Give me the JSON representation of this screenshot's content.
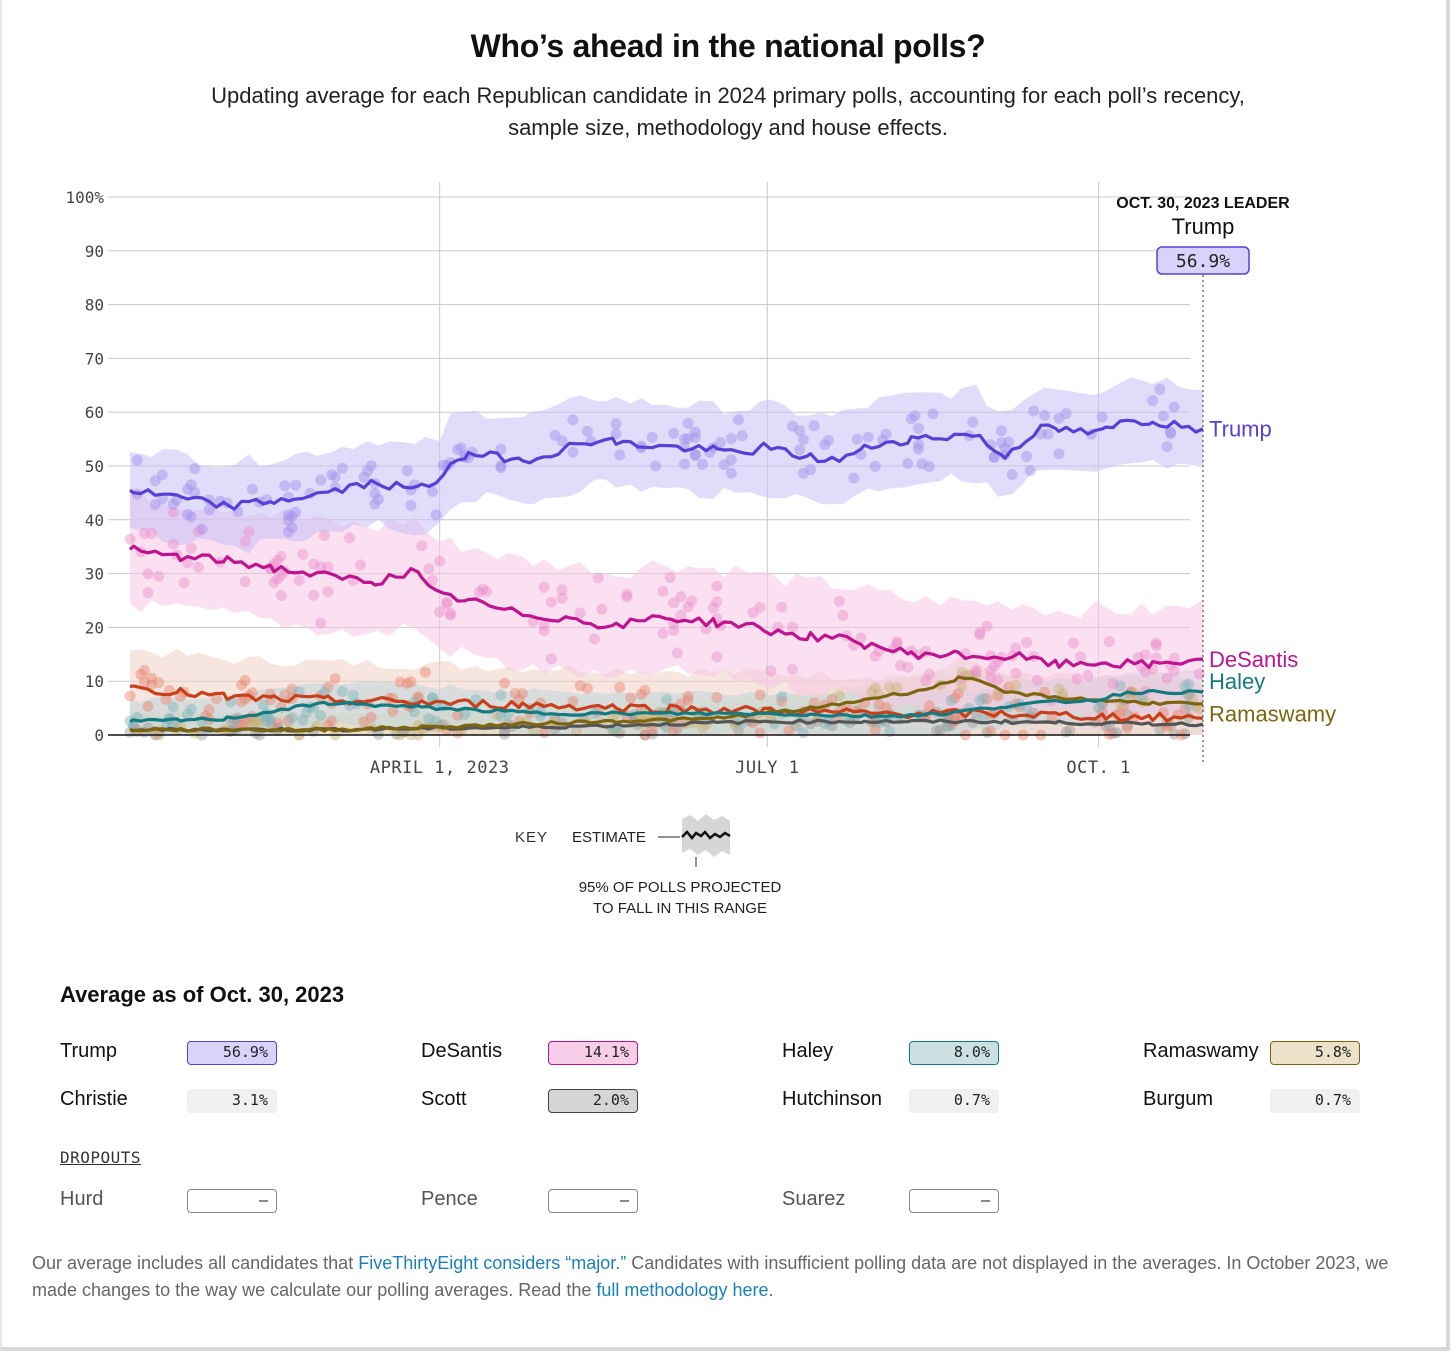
{
  "header": {
    "title": "Who’s ahead in the national polls?",
    "subtitle": "Updating average for each Republican candidate in 2024 primary polls, accounting for each poll’s recency, sample size, methodology and house effects."
  },
  "chart_data": {
    "type": "line",
    "ylim": [
      0,
      100
    ],
    "y_ticks": [
      "100%",
      "90",
      "80",
      "70",
      "60",
      "50",
      "40",
      "30",
      "20",
      "10",
      "0"
    ],
    "y_tick_values": [
      100,
      90,
      80,
      70,
      60,
      50,
      40,
      30,
      20,
      10,
      0
    ],
    "x_range": [
      "2023-01-05",
      "2023-10-30"
    ],
    "x_ticks": [
      {
        "date": "2023-04-01",
        "label": "APRIL 1, 2023"
      },
      {
        "date": "2023-07-01",
        "label": "JULY 1"
      },
      {
        "date": "2023-10-01",
        "label": "OCT. 1"
      }
    ],
    "grid": true,
    "leader": {
      "date_label": "OCT. 30, 2023 LEADER",
      "name": "Trump",
      "value": "56.9%"
    },
    "series": [
      {
        "name": "Trump",
        "color": "#5a3fd6",
        "band_color": "#c9c0f5",
        "dot_color": "#a08ee8",
        "x": [
          "2023-01-05",
          "2023-01-20",
          "2023-02-01",
          "2023-02-15",
          "2023-03-01",
          "2023-03-15",
          "2023-03-25",
          "2023-04-01",
          "2023-04-05",
          "2023-04-15",
          "2023-04-25",
          "2023-05-05",
          "2023-05-15",
          "2023-05-25",
          "2023-06-05",
          "2023-06-15",
          "2023-06-25",
          "2023-07-01",
          "2023-07-10",
          "2023-07-20",
          "2023-08-01",
          "2023-08-10",
          "2023-08-20",
          "2023-08-28",
          "2023-09-05",
          "2023-09-15",
          "2023-09-25",
          "2023-10-01",
          "2023-10-10",
          "2023-10-20",
          "2023-10-30"
        ],
        "y": [
          45.5,
          44,
          42.5,
          43.5,
          45,
          47,
          45.5,
          47,
          51.5,
          52,
          51,
          53,
          55,
          54,
          53.5,
          53,
          52.5,
          53.5,
          52,
          51,
          54,
          55,
          55.5,
          56,
          51.5,
          57,
          56.5,
          56,
          58.5,
          58,
          56.9
        ],
        "band_half": 8
      },
      {
        "name": "DeSantis",
        "color": "#c0138f",
        "band_color": "#f5c6e4",
        "dot_color": "#ea8fcc",
        "x": [
          "2023-01-05",
          "2023-01-20",
          "2023-02-01",
          "2023-02-15",
          "2023-03-01",
          "2023-03-15",
          "2023-03-25",
          "2023-04-01",
          "2023-04-10",
          "2023-04-20",
          "2023-05-01",
          "2023-05-10",
          "2023-05-20",
          "2023-06-01",
          "2023-06-15",
          "2023-06-25",
          "2023-07-01",
          "2023-07-10",
          "2023-07-20",
          "2023-08-01",
          "2023-08-10",
          "2023-08-20",
          "2023-09-01",
          "2023-09-10",
          "2023-09-20",
          "2023-10-01",
          "2023-10-15",
          "2023-10-30"
        ],
        "y": [
          34.5,
          33,
          32.5,
          31,
          29.5,
          28.5,
          30.5,
          26,
          25,
          23,
          22,
          21.5,
          20,
          22,
          21,
          20.5,
          19.5,
          18.5,
          18,
          16.5,
          15,
          15,
          14.5,
          14.5,
          13,
          13.5,
          13,
          14.1
        ],
        "band_half": 10
      },
      {
        "name": "Haley",
        "color": "#137a82",
        "band_color": "#bfd6d8",
        "dot_color": "#7fb3b7",
        "x": [
          "2023-01-05",
          "2023-02-01",
          "2023-03-01",
          "2023-04-01",
          "2023-05-01",
          "2023-06-01",
          "2023-07-01",
          "2023-08-01",
          "2023-08-20",
          "2023-09-01",
          "2023-09-15",
          "2023-10-01",
          "2023-10-10",
          "2023-10-30"
        ],
        "y": [
          2.5,
          3,
          6,
          5,
          4,
          4,
          4,
          3.5,
          4,
          5,
          6,
          6.5,
          8,
          8.0
        ],
        "band_half": 4
      },
      {
        "name": "Ramaswamy",
        "color": "#7d6510",
        "band_color": "#e6dcc0",
        "dot_color": "#c8b27a",
        "x": [
          "2023-01-05",
          "2023-03-01",
          "2023-04-01",
          "2023-05-15",
          "2023-06-15",
          "2023-07-15",
          "2023-08-01",
          "2023-08-15",
          "2023-08-25",
          "2023-09-05",
          "2023-09-20",
          "2023-10-01",
          "2023-10-15",
          "2023-10-30"
        ],
        "y": [
          1,
          1,
          1.5,
          2.5,
          3,
          5,
          7,
          8.5,
          11,
          8,
          7,
          6.5,
          6,
          5.8
        ],
        "band_half": 3
      },
      {
        "name": "Christie",
        "color": "#c7401b",
        "band_color": "#f0cfc4",
        "dot_color": "#e6826f",
        "x": [
          "2023-01-05",
          "2023-02-01",
          "2023-03-01",
          "2023-04-01",
          "2023-05-01",
          "2023-06-01",
          "2023-07-01",
          "2023-08-01",
          "2023-09-01",
          "2023-10-01",
          "2023-10-30"
        ],
        "y": [
          9,
          7,
          6.5,
          6,
          5.5,
          5,
          4.5,
          4,
          4,
          3.5,
          3.1
        ],
        "band_half": 7
      },
      {
        "name": "Scott",
        "color": "#555555",
        "band_color": "#dddddd",
        "dot_color": "#999999",
        "x": [
          "2023-01-05",
          "2023-03-01",
          "2023-05-01",
          "2023-06-01",
          "2023-07-01",
          "2023-08-01",
          "2023-09-01",
          "2023-10-01",
          "2023-10-30"
        ],
        "y": [
          1,
          1,
          1.5,
          2,
          2.5,
          2.5,
          2.5,
          2.2,
          2.0
        ],
        "band_half": 3
      }
    ],
    "direct_labels": [
      {
        "name": "Trump",
        "value": 57
      },
      {
        "name": "DeSantis",
        "value": 14.1
      },
      {
        "name": "Haley",
        "value": 10
      },
      {
        "name": "Ramaswamy",
        "value": 4
      }
    ],
    "key": {
      "label": "KEY",
      "estimate": "ESTIMATE",
      "range_line1": "95% OF POLLS PROJECTED",
      "range_line2": "TO FALL IN THIS RANGE"
    }
  },
  "averages": {
    "title": "Average as of Oct. 30, 2023",
    "candidates": [
      {
        "name": "Trump",
        "value": "56.9%",
        "bg": "#d9d2fb",
        "border": "#5a3fd6"
      },
      {
        "name": "DeSantis",
        "value": "14.1%",
        "bg": "#f7cde8",
        "border": "#c0138f"
      },
      {
        "name": "Haley",
        "value": "8.0%",
        "bg": "#cce0e1",
        "border": "#137a82"
      },
      {
        "name": "Ramaswamy",
        "value": "5.8%",
        "bg": "#ece2c9",
        "border": "#7d6510"
      },
      {
        "name": "Christie",
        "value": "3.1%",
        "bg": "#f0f0f0",
        "border": "#f0f0f0"
      },
      {
        "name": "Scott",
        "value": "2.0%",
        "bg": "#d6d6d6",
        "border": "#444444"
      },
      {
        "name": "Hutchinson",
        "value": "0.7%",
        "bg": "#f0f0f0",
        "border": "#f0f0f0"
      },
      {
        "name": "Burgum",
        "value": "0.7%",
        "bg": "#f0f0f0",
        "border": "#f0f0f0"
      }
    ],
    "dropouts_label": "DROPOUTS",
    "dropouts": [
      {
        "name": "Hurd",
        "value": "–"
      },
      {
        "name": "Pence",
        "value": "–"
      },
      {
        "name": "Suarez",
        "value": "–"
      }
    ]
  },
  "footer": {
    "text1": "Our average includes all candidates that ",
    "link1": "FiveThirtyEight considers “major.”",
    "text2": " Candidates with insufficient polling data are not displayed in the averages. In October 2023, we made changes to the way we calculate our polling averages. Read the ",
    "link2": "full methodology here",
    "text3": "."
  }
}
